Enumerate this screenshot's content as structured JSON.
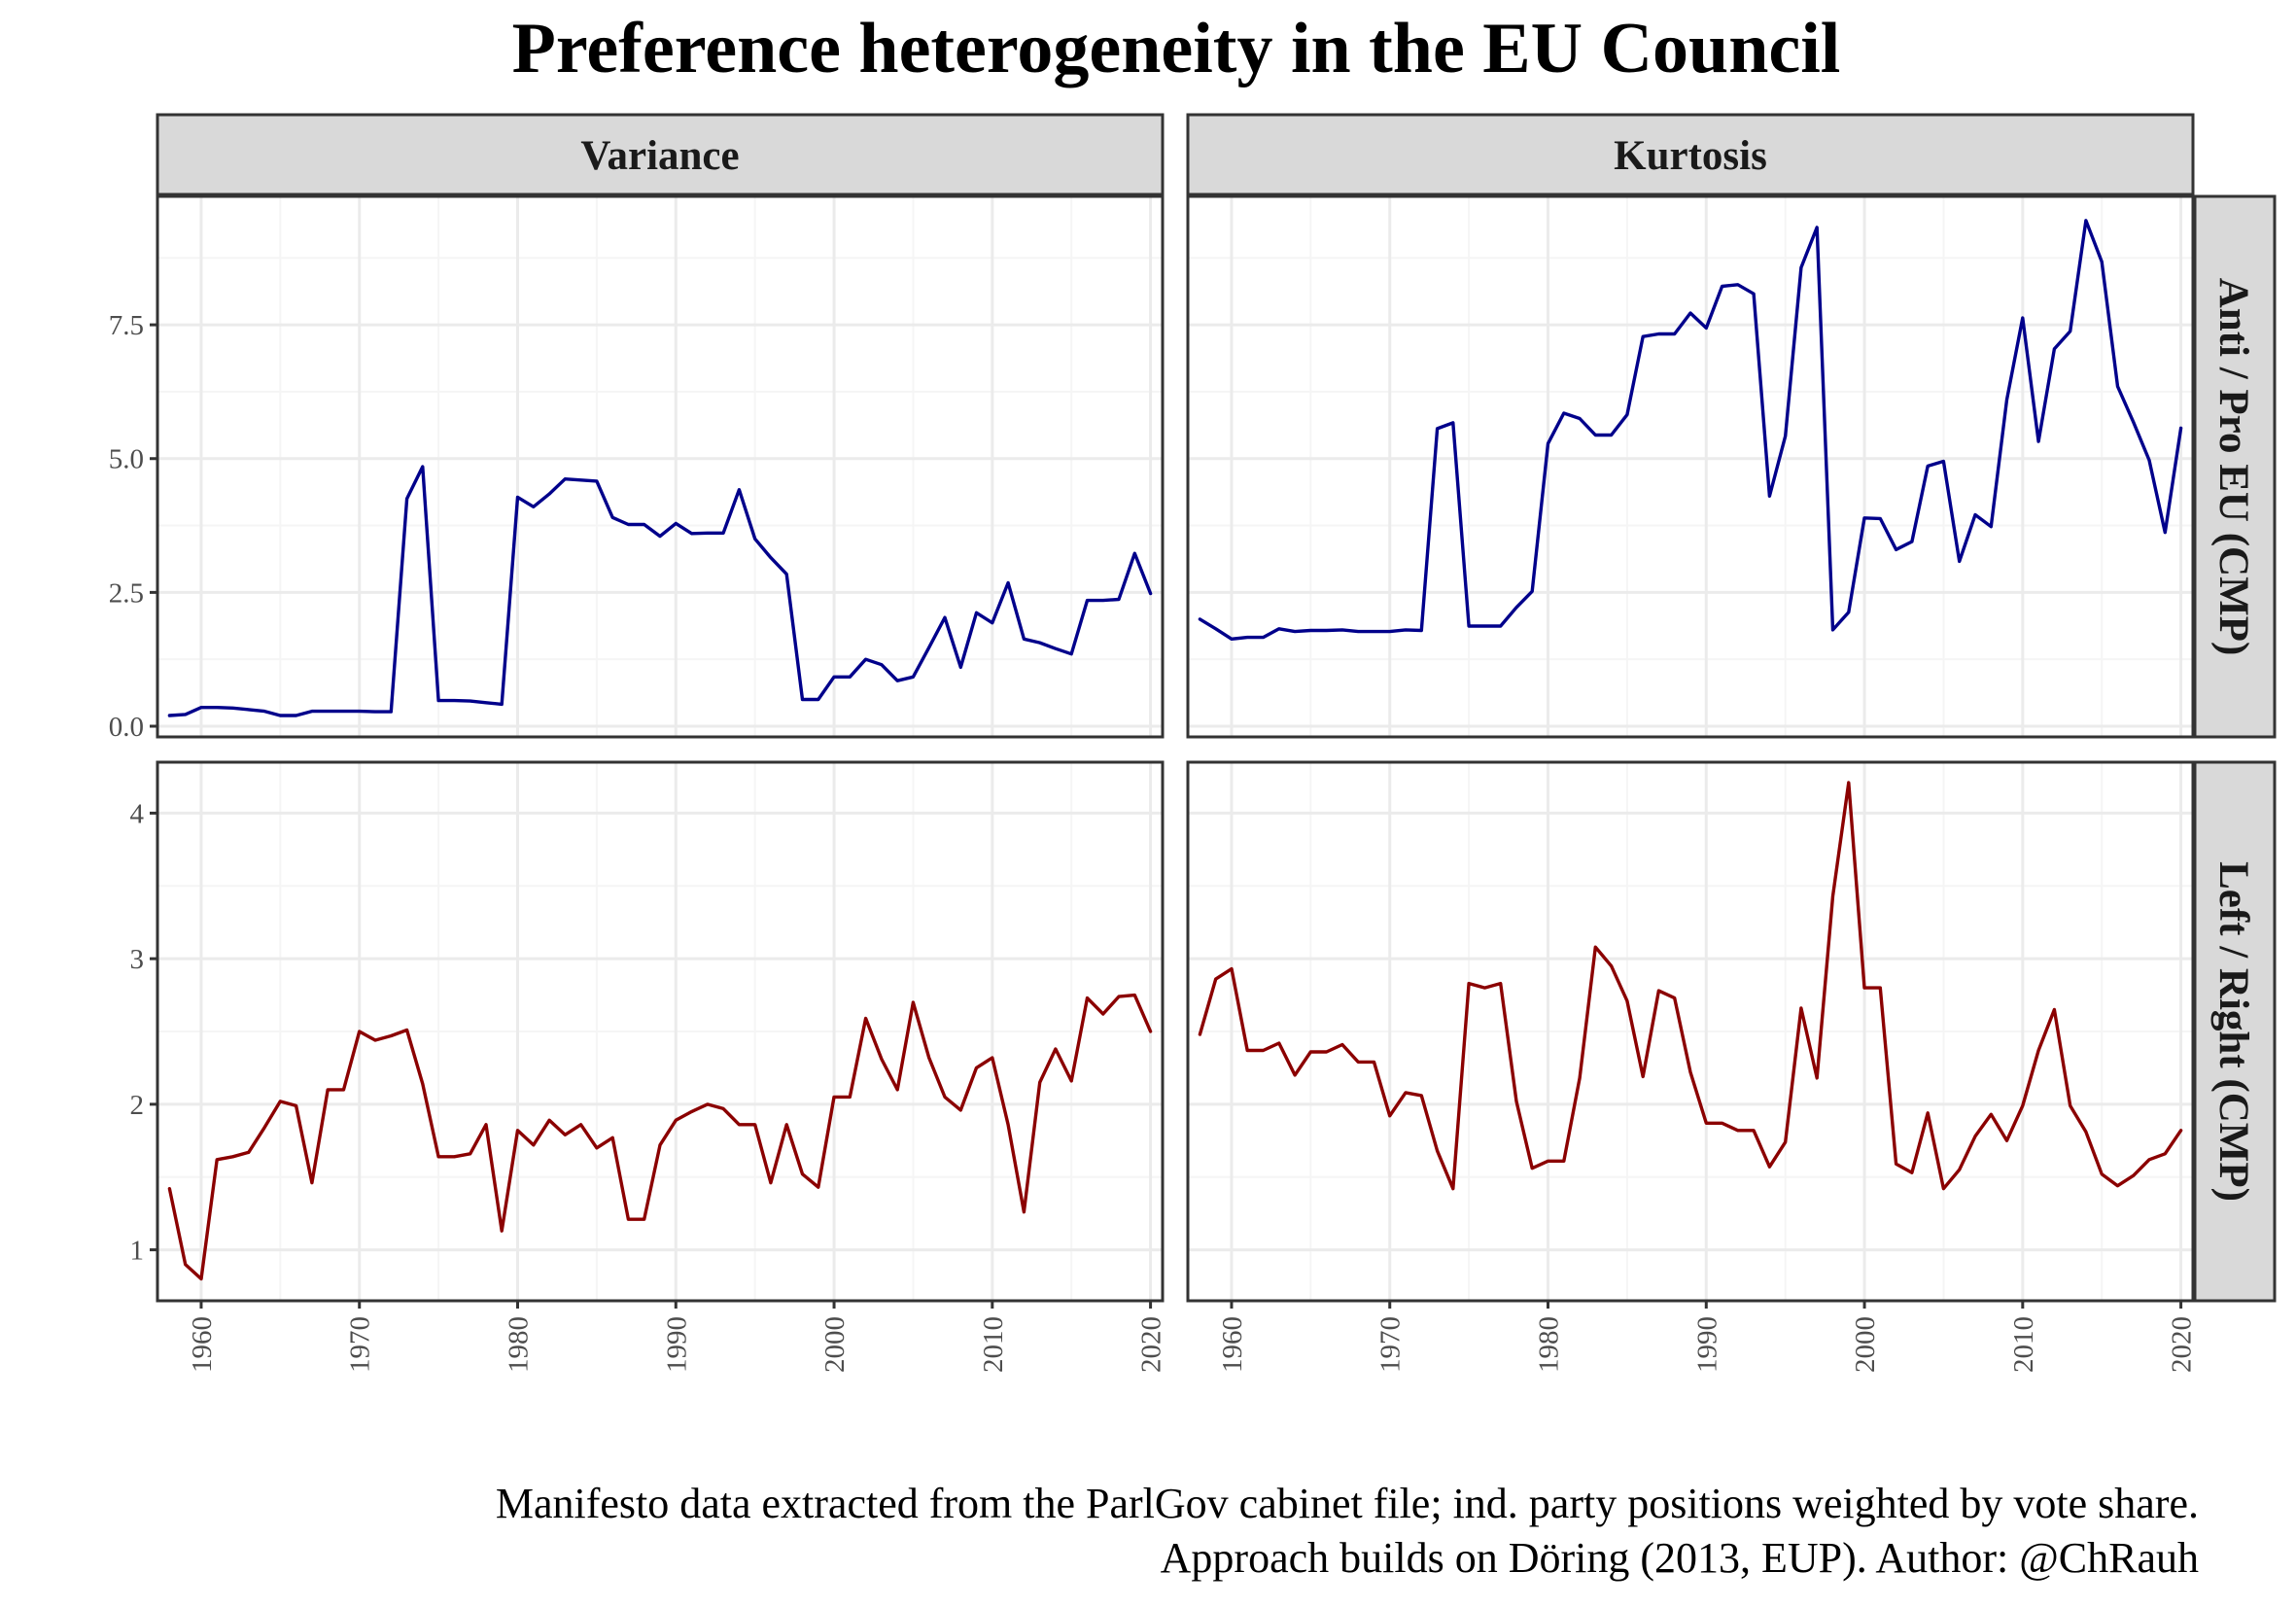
{
  "title": "Preference heterogeneity in the EU Council",
  "caption_line1": "Manifesto data extracted from the ParlGov cabinet file; ind. party positions weighted by vote share.",
  "caption_line2": "Approach builds on Döring (2013, EUP). Author: @ChRauh",
  "colors": {
    "eu_series": "#00008B",
    "lr_series": "#8B0000",
    "strip_fill": "#D9D9D9",
    "grid": "#EBEBEB"
  },
  "chart_data": {
    "type": "line",
    "facet_columns": [
      "Variance",
      "Kurtosis"
    ],
    "facet_rows": [
      "Anti / Pro EU (CMP)",
      "Left / Right (CMP)"
    ],
    "x_ticks": [
      1960,
      1970,
      1980,
      1990,
      2000,
      2010,
      2020
    ],
    "x_range": [
      1958,
      2020
    ],
    "grid": true,
    "panels": [
      {
        "column": "Variance",
        "row": "Anti / Pro EU (CMP)",
        "y_ticks": [
          "0.0",
          "2.5",
          "5.0",
          "7.5"
        ],
        "ylim": [
          -0.2,
          9.9
        ],
        "x": [
          1958,
          1959,
          1960,
          1961,
          1962,
          1963,
          1964,
          1965,
          1966,
          1967,
          1968,
          1969,
          1970,
          1971,
          1972,
          1973,
          1974,
          1975,
          1976,
          1977,
          1978,
          1979,
          1980,
          1981,
          1982,
          1983,
          1984,
          1985,
          1986,
          1987,
          1988,
          1989,
          1990,
          1991,
          1992,
          1993,
          1994,
          1995,
          1996,
          1997,
          1998,
          1999,
          2000,
          2001,
          2002,
          2003,
          2004,
          2005,
          2006,
          2007,
          2008,
          2009,
          2010,
          2011,
          2012,
          2013,
          2014,
          2015,
          2016,
          2017,
          2018,
          2019,
          2020
        ],
        "y": [
          0.2,
          0.22,
          0.35,
          0.35,
          0.34,
          0.31,
          0.28,
          0.2,
          0.2,
          0.28,
          0.28,
          0.28,
          0.28,
          0.27,
          0.27,
          4.25,
          4.85,
          0.48,
          0.48,
          0.47,
          0.44,
          0.41,
          4.28,
          4.1,
          4.34,
          4.62,
          4.6,
          4.58,
          3.9,
          3.77,
          3.77,
          3.55,
          3.79,
          3.6,
          3.61,
          3.61,
          4.42,
          3.5,
          3.15,
          2.84,
          0.5,
          0.5,
          0.92,
          0.92,
          1.25,
          1.15,
          0.85,
          0.92,
          1.47,
          2.03,
          1.1,
          2.12,
          1.93,
          2.68,
          1.63,
          1.56,
          1.45,
          1.35,
          2.35,
          2.35,
          2.37,
          3.23,
          2.48
        ]
      },
      {
        "column": "Kurtosis",
        "row": "Anti / Pro EU (CMP)",
        "y_ticks": [
          "0.0",
          "2.5",
          "5.0",
          "7.5"
        ],
        "ylim": [
          -0.2,
          9.9
        ],
        "x": [
          1958,
          1959,
          1960,
          1961,
          1962,
          1963,
          1964,
          1965,
          1966,
          1967,
          1968,
          1969,
          1970,
          1971,
          1972,
          1973,
          1974,
          1975,
          1976,
          1977,
          1978,
          1979,
          1980,
          1981,
          1982,
          1983,
          1984,
          1985,
          1986,
          1987,
          1988,
          1989,
          1990,
          1991,
          1992,
          1993,
          1994,
          1995,
          1996,
          1997,
          1998,
          1999,
          2000,
          2001,
          2002,
          2003,
          2004,
          2005,
          2006,
          2007,
          2008,
          2009,
          2010,
          2011,
          2012,
          2013,
          2014,
          2015,
          2016,
          2017,
          2018,
          2019,
          2020
        ],
        "y": [
          2.0,
          1.82,
          1.63,
          1.66,
          1.66,
          1.82,
          1.77,
          1.79,
          1.79,
          1.8,
          1.77,
          1.77,
          1.77,
          1.8,
          1.79,
          5.56,
          5.67,
          1.87,
          1.87,
          1.87,
          2.22,
          2.52,
          5.28,
          5.85,
          5.75,
          5.44,
          5.44,
          5.82,
          7.28,
          7.33,
          7.33,
          7.72,
          7.44,
          8.22,
          8.25,
          8.08,
          4.3,
          5.42,
          8.57,
          9.32,
          1.8,
          2.13,
          3.89,
          3.88,
          3.3,
          3.45,
          4.86,
          4.95,
          3.08,
          3.95,
          3.73,
          6.1,
          7.63,
          5.32,
          7.05,
          7.38,
          9.45,
          8.68,
          6.35,
          5.68,
          4.97,
          3.62,
          5.57
        ]
      },
      {
        "column": "Variance",
        "row": "Left / Right (CMP)",
        "y_ticks": [
          "1",
          "2",
          "3",
          "4"
        ],
        "ylim": [
          0.65,
          4.35
        ],
        "x": [
          1958,
          1959,
          1960,
          1961,
          1962,
          1963,
          1964,
          1965,
          1966,
          1967,
          1968,
          1969,
          1970,
          1971,
          1972,
          1973,
          1974,
          1975,
          1976,
          1977,
          1978,
          1979,
          1980,
          1981,
          1982,
          1983,
          1984,
          1985,
          1986,
          1987,
          1988,
          1989,
          1990,
          1991,
          1992,
          1993,
          1994,
          1995,
          1996,
          1997,
          1998,
          1999,
          2000,
          2001,
          2002,
          2003,
          2004,
          2005,
          2006,
          2007,
          2008,
          2009,
          2010,
          2011,
          2012,
          2013,
          2014,
          2015,
          2016,
          2017,
          2018,
          2019,
          2020
        ],
        "y": [
          1.42,
          0.9,
          0.8,
          1.62,
          1.64,
          1.67,
          1.84,
          2.02,
          1.99,
          1.46,
          2.1,
          2.1,
          2.5,
          2.44,
          2.47,
          2.51,
          2.14,
          1.64,
          1.64,
          1.66,
          1.86,
          1.13,
          1.82,
          1.72,
          1.89,
          1.79,
          1.86,
          1.7,
          1.77,
          1.21,
          1.21,
          1.72,
          1.89,
          1.95,
          2.0,
          1.97,
          1.86,
          1.86,
          1.46,
          1.86,
          1.52,
          1.43,
          2.05,
          2.05,
          2.59,
          2.31,
          2.1,
          2.7,
          2.32,
          2.05,
          1.96,
          2.25,
          2.32,
          1.86,
          1.26,
          2.15,
          2.38,
          2.16,
          2.73,
          2.62,
          2.74,
          2.75,
          2.5
        ]
      },
      {
        "column": "Kurtosis",
        "row": "Left / Right (CMP)",
        "y_ticks": [
          "1",
          "2",
          "3",
          "4"
        ],
        "ylim": [
          0.65,
          4.35
        ],
        "x": [
          1958,
          1959,
          1960,
          1961,
          1962,
          1963,
          1964,
          1965,
          1966,
          1967,
          1968,
          1969,
          1970,
          1971,
          1972,
          1973,
          1974,
          1975,
          1976,
          1977,
          1978,
          1979,
          1980,
          1981,
          1982,
          1983,
          1984,
          1985,
          1986,
          1987,
          1988,
          1989,
          1990,
          1991,
          1992,
          1993,
          1994,
          1995,
          1996,
          1997,
          1998,
          1999,
          2000,
          2001,
          2002,
          2003,
          2004,
          2005,
          2006,
          2007,
          2008,
          2009,
          2010,
          2011,
          2012,
          2013,
          2014,
          2015,
          2016,
          2017,
          2018,
          2019,
          2020
        ],
        "y": [
          2.48,
          2.86,
          2.93,
          2.37,
          2.37,
          2.42,
          2.2,
          2.36,
          2.36,
          2.41,
          2.29,
          2.29,
          1.92,
          2.08,
          2.06,
          1.68,
          1.42,
          2.83,
          2.8,
          2.83,
          2.02,
          1.56,
          1.61,
          1.61,
          2.18,
          3.08,
          2.95,
          2.71,
          2.19,
          2.78,
          2.73,
          2.22,
          1.87,
          1.87,
          1.82,
          1.82,
          1.57,
          1.74,
          2.66,
          2.18,
          3.43,
          4.21,
          2.8,
          2.8,
          1.59,
          1.53,
          1.94,
          1.42,
          1.55,
          1.78,
          1.93,
          1.75,
          1.99,
          2.37,
          2.65,
          1.99,
          1.81,
          1.52,
          1.44,
          1.51,
          1.62,
          1.66,
          1.82
        ]
      }
    ]
  }
}
